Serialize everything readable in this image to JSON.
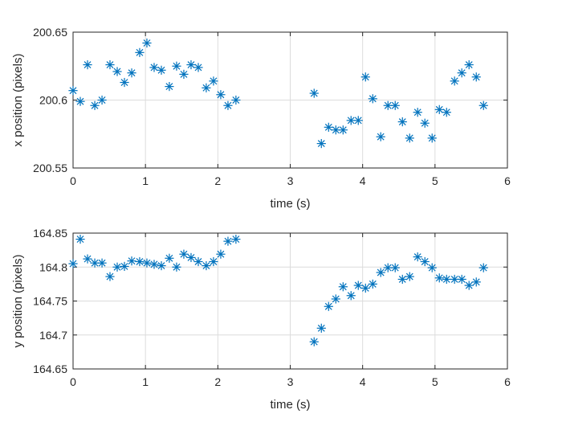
{
  "chart_data": [
    {
      "type": "scatter",
      "xlabel": "time (s)",
      "ylabel": "x position (pixels)",
      "xlim": [
        0,
        6
      ],
      "ylim": [
        200.55,
        200.65
      ],
      "xticks": [
        "0",
        "1",
        "2",
        "3",
        "4",
        "5",
        "6"
      ],
      "yticks": [
        "200.55",
        "200.6",
        "200.65"
      ],
      "grid": true,
      "marker": "asterisk",
      "color": "#0072bd",
      "points": [
        [
          0.0,
          200.607
        ],
        [
          0.1,
          200.599
        ],
        [
          0.2,
          200.626
        ],
        [
          0.3,
          200.596
        ],
        [
          0.4,
          200.6
        ],
        [
          0.51,
          200.626
        ],
        [
          0.61,
          200.621
        ],
        [
          0.71,
          200.613
        ],
        [
          0.81,
          200.62
        ],
        [
          0.92,
          200.635
        ],
        [
          1.02,
          200.642
        ],
        [
          1.12,
          200.624
        ],
        [
          1.22,
          200.622
        ],
        [
          1.33,
          200.61
        ],
        [
          1.43,
          200.625
        ],
        [
          1.53,
          200.619
        ],
        [
          1.63,
          200.626
        ],
        [
          1.73,
          200.624
        ],
        [
          1.84,
          200.609
        ],
        [
          1.94,
          200.614
        ],
        [
          2.04,
          200.604
        ],
        [
          2.14,
          200.596
        ],
        [
          2.25,
          200.6
        ],
        [
          3.33,
          200.605
        ],
        [
          3.43,
          200.568
        ],
        [
          3.53,
          200.58
        ],
        [
          3.63,
          200.578
        ],
        [
          3.73,
          200.578
        ],
        [
          3.84,
          200.585
        ],
        [
          3.94,
          200.585
        ],
        [
          4.04,
          200.617
        ],
        [
          4.14,
          200.601
        ],
        [
          4.25,
          200.573
        ],
        [
          4.35,
          200.596
        ],
        [
          4.45,
          200.596
        ],
        [
          4.55,
          200.584
        ],
        [
          4.65,
          200.572
        ],
        [
          4.76,
          200.591
        ],
        [
          4.86,
          200.583
        ],
        [
          4.96,
          200.572
        ],
        [
          5.06,
          200.593
        ],
        [
          5.16,
          200.591
        ],
        [
          5.27,
          200.614
        ],
        [
          5.37,
          200.62
        ],
        [
          5.47,
          200.626
        ],
        [
          5.57,
          200.617
        ],
        [
          5.67,
          200.596
        ]
      ]
    },
    {
      "type": "scatter",
      "xlabel": "time (s)",
      "ylabel": "y position (pixels)",
      "xlim": [
        0,
        6
      ],
      "ylim": [
        164.65,
        164.85
      ],
      "xticks": [
        "0",
        "1",
        "2",
        "3",
        "4",
        "5",
        "6"
      ],
      "yticks": [
        "164.65",
        "164.7",
        "164.75",
        "164.8",
        "164.85"
      ],
      "grid": true,
      "marker": "asterisk",
      "color": "#0072bd",
      "points": [
        [
          0.0,
          164.805
        ],
        [
          0.1,
          164.841
        ],
        [
          0.2,
          164.812
        ],
        [
          0.3,
          164.806
        ],
        [
          0.4,
          164.806
        ],
        [
          0.51,
          164.786
        ],
        [
          0.61,
          164.8
        ],
        [
          0.71,
          164.801
        ],
        [
          0.81,
          164.809
        ],
        [
          0.92,
          164.808
        ],
        [
          1.02,
          164.806
        ],
        [
          1.12,
          164.804
        ],
        [
          1.22,
          164.802
        ],
        [
          1.33,
          164.813
        ],
        [
          1.43,
          164.8
        ],
        [
          1.53,
          164.819
        ],
        [
          1.63,
          164.814
        ],
        [
          1.73,
          164.808
        ],
        [
          1.84,
          164.802
        ],
        [
          1.94,
          164.808
        ],
        [
          2.04,
          164.819
        ],
        [
          2.14,
          164.838
        ],
        [
          2.25,
          164.841
        ],
        [
          3.33,
          164.69
        ],
        [
          3.43,
          164.71
        ],
        [
          3.53,
          164.742
        ],
        [
          3.63,
          164.753
        ],
        [
          3.73,
          164.771
        ],
        [
          3.84,
          164.758
        ],
        [
          3.94,
          164.773
        ],
        [
          4.04,
          164.769
        ],
        [
          4.14,
          164.775
        ],
        [
          4.25,
          164.792
        ],
        [
          4.35,
          164.799
        ],
        [
          4.45,
          164.799
        ],
        [
          4.55,
          164.782
        ],
        [
          4.65,
          164.786
        ],
        [
          4.76,
          164.815
        ],
        [
          4.86,
          164.808
        ],
        [
          4.96,
          164.799
        ],
        [
          5.06,
          164.784
        ],
        [
          5.16,
          164.782
        ],
        [
          5.27,
          164.782
        ],
        [
          5.37,
          164.782
        ],
        [
          5.47,
          164.773
        ],
        [
          5.57,
          164.778
        ],
        [
          5.67,
          164.799
        ]
      ]
    }
  ]
}
